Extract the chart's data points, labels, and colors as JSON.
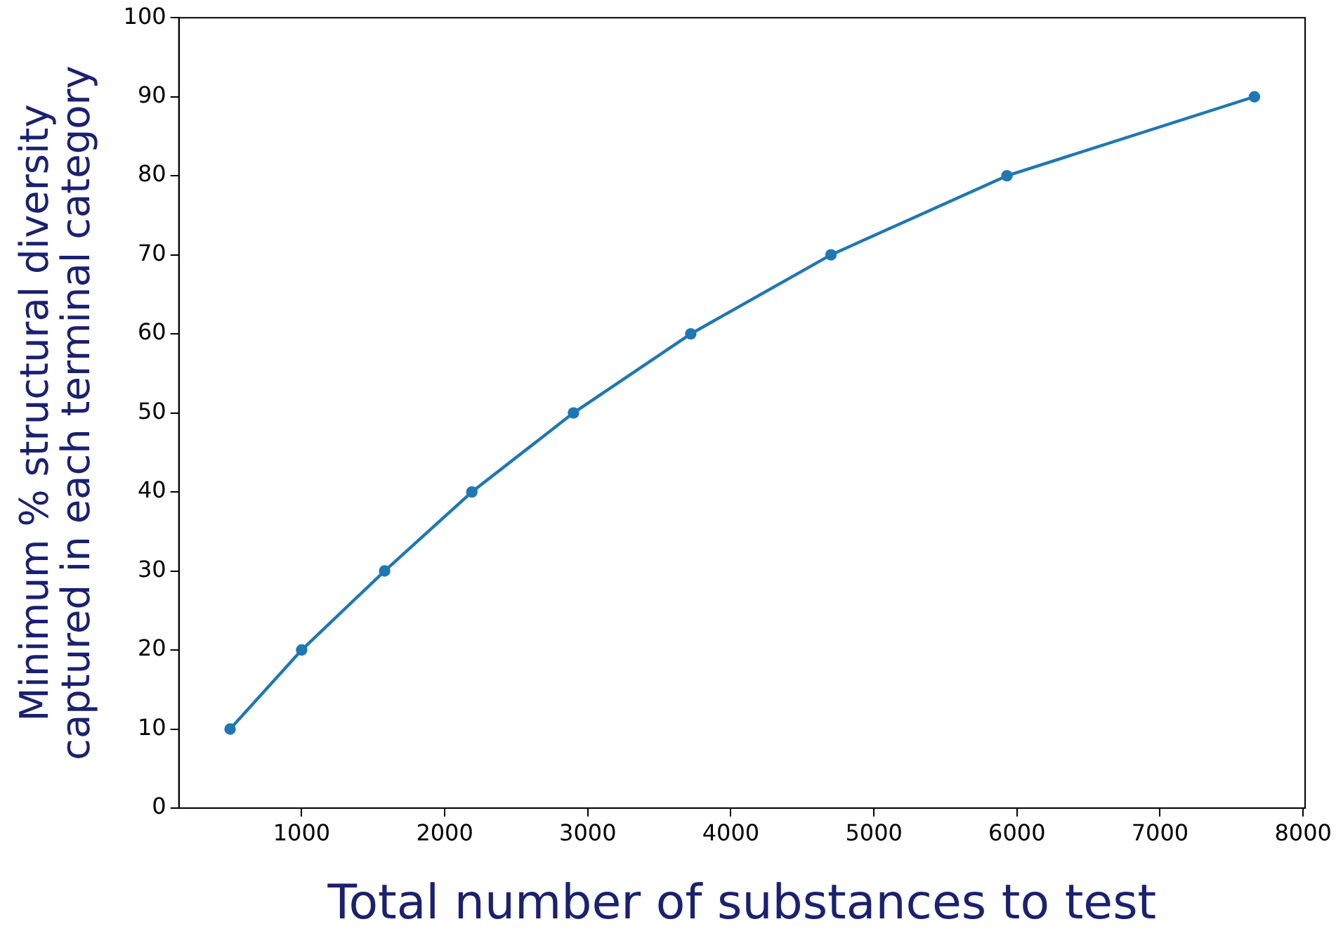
{
  "chart_data": {
    "type": "line",
    "xlabel": "Total number of substances to test",
    "ylabel": "Minimum % structural diversity\ncaptured in each terminal category",
    "x": [
      500,
      1000,
      1580,
      2190,
      2900,
      3720,
      4700,
      5930,
      7660
    ],
    "series": [
      {
        "color": "#1f77b4",
        "values": [
          10,
          20,
          30,
          40,
          50,
          60,
          70,
          80,
          90
        ]
      }
    ],
    "xlim": [
      142,
      8014
    ],
    "xticks": [
      1000,
      2000,
      3000,
      4000,
      5000,
      6000,
      7000,
      8000
    ],
    "ylim": [
      0,
      100
    ],
    "yticks": [
      0,
      10,
      20,
      30,
      40,
      50,
      60,
      70,
      80,
      90,
      100
    ],
    "grid": false,
    "legend": false,
    "marker": "circle",
    "line_style": "solid"
  }
}
